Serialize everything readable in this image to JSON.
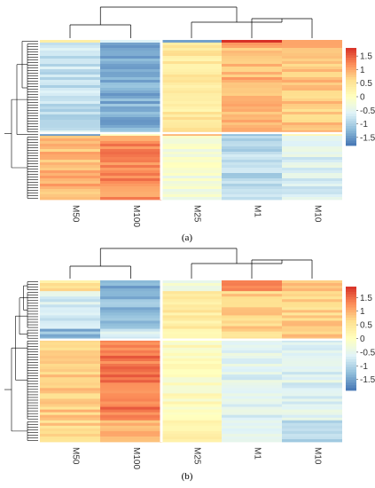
{
  "chart_data": [
    {
      "type": "heatmap",
      "caption": "(a)",
      "columns": [
        "M50",
        "M100",
        "M25",
        "M1",
        "M10"
      ],
      "column_groups": [
        [
          "M50",
          "M100"
        ],
        [
          "M25",
          "M1",
          "M10"
        ]
      ],
      "color_scale": {
        "min": -1.8,
        "max": 1.8,
        "ticks": [
          1.5,
          1,
          0.5,
          0,
          -0.5,
          -1,
          -1.5
        ],
        "tick_labels": [
          "1.5",
          "1",
          "0.5",
          "0",
          "-0.5",
          "-1",
          "-1.5"
        ],
        "colors": [
          "#4575b4",
          "#91bfdb",
          "#e0f3f8",
          "#ffffbf",
          "#fee090",
          "#fc8d59",
          "#d73027"
        ]
      },
      "row_clusters": [
        {
          "rows": 1,
          "values": [
            0.2,
            -0.4,
            -1.4,
            1.7,
            1.2
          ]
        },
        {
          "rows": 34,
          "values": [
            -0.8,
            -1.3,
            0.4,
            0.9,
            0.8
          ]
        },
        {
          "rows": 1,
          "values": [
            -1.5,
            0.1,
            1.0,
            -1.1,
            0.2
          ]
        },
        {
          "rows": 24,
          "values": [
            0.9,
            1.2,
            -0.2,
            -0.9,
            -0.6
          ]
        }
      ]
    },
    {
      "type": "heatmap",
      "caption": "(b)",
      "columns": [
        "M50",
        "M100",
        "M25",
        "M1",
        "M10"
      ],
      "column_groups": [
        [
          "M50",
          "M100"
        ],
        [
          "M25",
          "M1",
          "M10"
        ]
      ],
      "color_scale": {
        "min": -1.9,
        "max": 1.9,
        "ticks": [
          1.5,
          1,
          0.5,
          0,
          -0.5,
          -1,
          -1.5
        ],
        "tick_labels": [
          "1.5",
          "1",
          "0.5",
          "0",
          "-0.5",
          "-1",
          "-1.5"
        ],
        "colors": [
          "#4575b4",
          "#91bfdb",
          "#e0f3f8",
          "#ffffbf",
          "#fee090",
          "#fc8d59",
          "#d73027"
        ]
      },
      "row_clusters": [
        {
          "rows": 4,
          "values": [
            0.5,
            -1.4,
            -0.3,
            1.4,
            0.9
          ]
        },
        {
          "rows": 14,
          "values": [
            -0.7,
            -1.3,
            0.4,
            0.7,
            0.7
          ]
        },
        {
          "rows": 4,
          "values": [
            -1.3,
            -0.6,
            0.3,
            0.6,
            0.8
          ]
        },
        {
          "rows": 30,
          "values": [
            0.8,
            1.4,
            0.0,
            -0.6,
            -0.6
          ]
        },
        {
          "rows": 8,
          "values": [
            0.7,
            1.0,
            0.2,
            -0.5,
            -1.0
          ]
        }
      ]
    }
  ]
}
